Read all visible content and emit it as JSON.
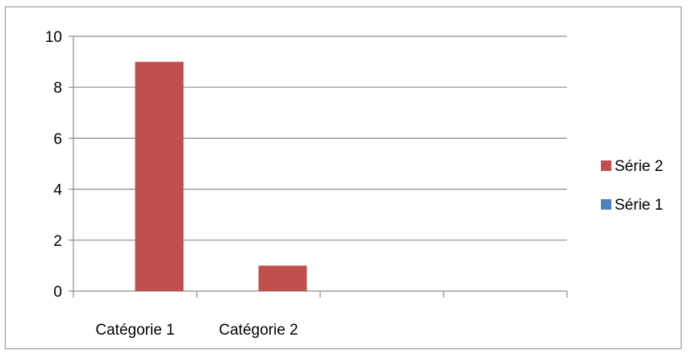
{
  "chart_data": {
    "type": "bar",
    "categories": [
      "Catégorie 1",
      "Catégorie 2",
      "",
      ""
    ],
    "series": [
      {
        "name": "Série 1",
        "color": "#4f81bd",
        "values": [
          0,
          0,
          0,
          0
        ]
      },
      {
        "name": "Série 2",
        "color": "#c0504d",
        "values": [
          9,
          1,
          0,
          0
        ]
      }
    ],
    "yticks": [
      "0",
      "2",
      "4",
      "6",
      "8",
      "10"
    ],
    "ylim": [
      0,
      10
    ],
    "grid": true,
    "legend_position": "right",
    "legend_order": [
      "Série 2",
      "Série 1"
    ]
  }
}
